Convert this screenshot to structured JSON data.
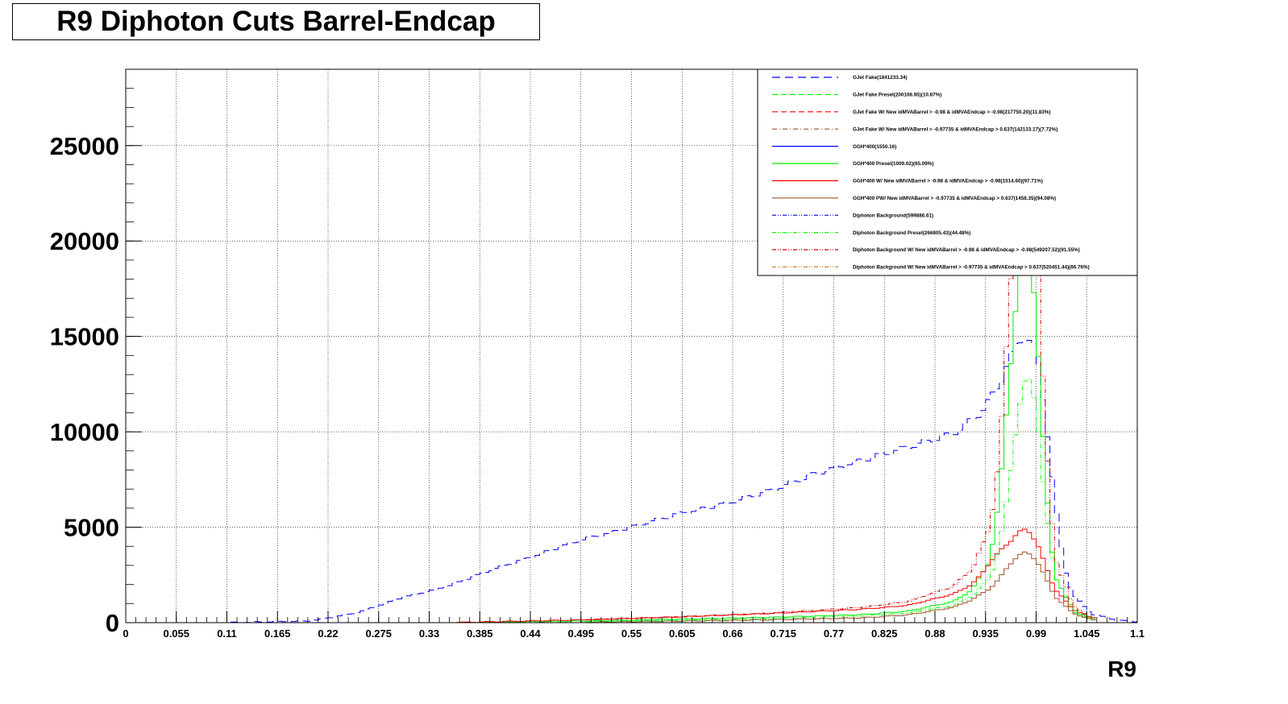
{
  "title": "R9 Diphoton Cuts Barrel-Endcap",
  "chart_data": {
    "type": "line",
    "title": "R9 Diphoton Cuts Barrel-Endcap",
    "xlabel": "R9",
    "ylabel": "",
    "xlim": [
      0,
      1.1
    ],
    "ylim": [
      0,
      29000
    ],
    "grid": true,
    "legend_position": "top-right",
    "x_ticks": [
      "0",
      "0.055",
      "0.11",
      "0.165",
      "0.22",
      "0.275",
      "0.33",
      "0.385",
      "0.44",
      "0.495",
      "0.55",
      "0.605",
      "0.66",
      "0.715",
      "0.77",
      "0.825",
      "0.88",
      "0.935",
      "0.99",
      "1.045",
      "1.1"
    ],
    "y_ticks": [
      "0",
      "5000",
      "10000",
      "15000",
      "20000",
      "25000"
    ],
    "series": [
      {
        "name": "GJet Fake(1841233.34)",
        "color": "#0000ff",
        "style": "dashed-long",
        "x": [
          0.1,
          0.2,
          0.25,
          0.3,
          0.35,
          0.4,
          0.45,
          0.5,
          0.55,
          0.6,
          0.65,
          0.7,
          0.75,
          0.8,
          0.85,
          0.9,
          0.93,
          0.95,
          0.96,
          0.97,
          0.98,
          0.99,
          1.0,
          1.01,
          1.02,
          1.03,
          1.05,
          1.08,
          1.1
        ],
        "y": [
          0,
          80,
          500,
          1300,
          1900,
          2800,
          3600,
          4400,
          5000,
          5700,
          6200,
          6900,
          7800,
          8500,
          9200,
          9900,
          11000,
          12500,
          13800,
          14700,
          15000,
          14200,
          11000,
          6500,
          3000,
          1500,
          450,
          120,
          50
        ]
      },
      {
        "name": "GJet Fake Presel(200108.95)(10.87%)",
        "color": "#00ff00",
        "style": "dashed",
        "x": [],
        "y": []
      },
      {
        "name": "GJet Fake W/ New idMVABarrel > -0.98 & idMVAEndcap > -0.98(217750.20)(11.83%)",
        "color": "#ff0000",
        "style": "dashed",
        "x": [],
        "y": []
      },
      {
        "name": "GJet Fake W/ New idMVABarrel > -0.97735 & idMVAEndcap > 0.637(142133.17)(7.72%)",
        "color": "#a0522d",
        "style": "dash-dot",
        "x": [],
        "y": []
      },
      {
        "name": "GGH*400(1550.16)",
        "color": "#0000ff",
        "style": "solid",
        "x": [],
        "y": []
      },
      {
        "name": "GGH*400 Presel(1009.02)(65.09%)",
        "color": "#00ee00",
        "style": "solid",
        "x": [
          0.35,
          0.5,
          0.6,
          0.7,
          0.8,
          0.85,
          0.9,
          0.92,
          0.94,
          0.95,
          0.96,
          0.97,
          0.975,
          0.98,
          0.985,
          0.99,
          1.0,
          1.01,
          1.03,
          1.05
        ],
        "y": [
          0,
          80,
          180,
          280,
          420,
          600,
          1100,
          1700,
          3300,
          6500,
          12500,
          17500,
          19000,
          19500,
          19000,
          16000,
          7500,
          2500,
          600,
          150
        ]
      },
      {
        "name": "GGH*400 W/ New idMVABarrel > -0.98 & idMVAEndcap > -0.98(1514.60)(97.71%)",
        "color": "#ff0000",
        "style": "solid",
        "x": [
          0.35,
          0.5,
          0.6,
          0.7,
          0.8,
          0.85,
          0.9,
          0.92,
          0.93,
          0.94,
          0.95,
          0.96,
          0.97,
          0.98,
          0.99,
          1.0,
          1.01,
          1.03,
          1.05
        ],
        "y": [
          0,
          150,
          300,
          480,
          700,
          900,
          1500,
          2000,
          2500,
          3200,
          3700,
          4200,
          4700,
          4900,
          4300,
          3000,
          1800,
          700,
          250
        ]
      },
      {
        "name": "GGH*400 PW/ New idMVABarrel > -0.97735 & idMVAEndcap > 0.637(1458.35)(94.08%)",
        "color": "#a0522d",
        "style": "solid",
        "x": [
          0.5,
          0.6,
          0.7,
          0.8,
          0.85,
          0.9,
          0.92,
          0.94,
          0.95,
          0.96,
          0.97,
          0.98,
          0.99,
          1.0,
          1.01,
          1.03,
          1.05
        ],
        "y": [
          30,
          80,
          150,
          250,
          400,
          800,
          1200,
          1800,
          2300,
          3000,
          3500,
          3700,
          3300,
          2400,
          1400,
          500,
          150
        ]
      },
      {
        "name": "Diphoton Background(599886.61)",
        "color": "#0000cc",
        "style": "dash-dot-dot",
        "x": [],
        "y": []
      },
      {
        "name": "Diphoton Background Presel(266805.43)(44.48%)",
        "color": "#00ff00",
        "style": "dash-dot-dot",
        "x": [
          0.5,
          0.6,
          0.7,
          0.8,
          0.85,
          0.9,
          0.92,
          0.94,
          0.95,
          0.96,
          0.97,
          0.98,
          0.99,
          1.0,
          1.01,
          1.03,
          1.05
        ],
        "y": [
          50,
          120,
          200,
          350,
          500,
          900,
          1400,
          2400,
          4000,
          7000,
          11000,
          13000,
          11500,
          6000,
          2500,
          700,
          200
        ]
      },
      {
        "name": "Diphoton Background W/ New idMVABarrel > -0.98 & idMVAEndcap > -0.98(549207.52)(91.55%)",
        "color": "#cc0000",
        "style": "dash-dot-dot",
        "x": [
          0.5,
          0.6,
          0.7,
          0.8,
          0.85,
          0.9,
          0.92,
          0.94,
          0.95,
          0.96,
          0.97,
          0.975,
          0.98,
          0.985,
          0.99,
          1.0,
          1.01,
          1.03,
          1.05
        ],
        "y": [
          150,
          300,
          500,
          800,
          1100,
          1900,
          2800,
          5000,
          9000,
          16000,
          24000,
          27500,
          28000,
          27000,
          22000,
          10000,
          3500,
          900,
          250
        ]
      },
      {
        "name": "Diphoton Background W/ New idMVABarrel > -0.97735 & idMVAEndcap > 0.637(520451.44)(86.76%)",
        "color": "#cd853f",
        "style": "dash-dot-dot",
        "x": [],
        "y": []
      }
    ]
  }
}
